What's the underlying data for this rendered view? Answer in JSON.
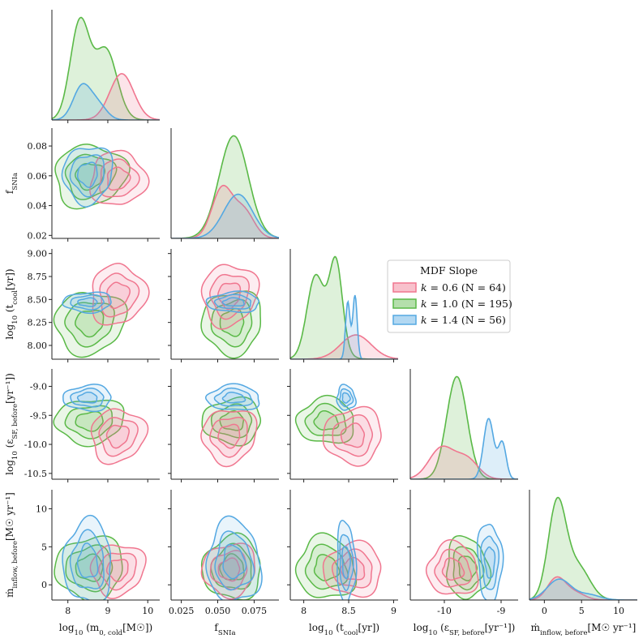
{
  "colors": {
    "k06": "#f0768f",
    "k10": "#5ab947",
    "k14": "#54a8e2"
  },
  "chart_data": {
    "type": "corner-kde",
    "variables": [
      {
        "label": "log10(m0,cold[M☉])",
        "ticks": [
          8,
          9,
          10
        ],
        "range": [
          7.6,
          10.3
        ]
      },
      {
        "label": "fSNIa",
        "ticks": [
          0.025,
          0.05,
          0.075
        ],
        "range": [
          0.018,
          0.092
        ]
      },
      {
        "label": "log10(tcool[yr])",
        "ticks": [
          8.0,
          8.5,
          9.0
        ],
        "range": [
          7.85,
          9.05
        ]
      },
      {
        "label": "log10(εSF,before[yr−1])",
        "ticks": [
          -10,
          -9
        ],
        "range": [
          -10.6,
          -8.7
        ]
      },
      {
        "label": "ṁinflow,before[M☉ yr−1]",
        "ticks": [
          0,
          5,
          10
        ],
        "range": [
          -2,
          12.5
        ]
      }
    ],
    "row_ticks": {
      "1": [
        0.02,
        0.04,
        0.06,
        0.08
      ],
      "2": [
        8.0,
        8.25,
        8.5,
        8.75,
        9.0
      ],
      "3": [
        -9.0,
        -9.5,
        -10.0,
        -10.5
      ],
      "4": [
        0,
        5,
        10
      ]
    },
    "axis_labels": {
      "x0": {
        "pre": "log",
        "sub": "10",
        "mid": " (m",
        "sub2": "0, cold",
        "post": "[M☉])"
      },
      "x1": {
        "pre": "f",
        "sub": "SNIa"
      },
      "x2": {
        "pre": "log",
        "sub": "10",
        "mid": " (t",
        "sub2": "cool",
        "post": "[yr])"
      },
      "x3": {
        "pre": "log",
        "sub": "10",
        "mid": " (ε",
        "sub2": "SF, before",
        "post": "[yr⁻¹])"
      },
      "x4": {
        "pre": "ṁ",
        "sub": "inflow, before",
        "post": "[M☉ yr⁻¹]"
      },
      "y1": {
        "pre": "f",
        "sub": "SNIa"
      },
      "y2": {
        "pre": "log",
        "sub": "10",
        "mid": " (t",
        "sub2": "cool",
        "post": "[yr])"
      },
      "y3": {
        "pre": "log",
        "sub": "10",
        "mid": " (ε",
        "sub2": "SF, before",
        "post": "[yr⁻¹])"
      },
      "y4": {
        "pre": "ṁ",
        "sub": "inflow, before",
        "post": "[M☉ yr⁻¹]"
      }
    },
    "legend": {
      "title": "MDF Slope",
      "location": "upper-right",
      "entries": [
        {
          "name": "k = 0.6 (N = 64)",
          "k": "k",
          "rest": " = 0.6 (N = 64)",
          "color": "k06"
        },
        {
          "name": "k = 1.0 (N = 195)",
          "k": "k",
          "rest": " = 1.0 (N = 195)",
          "color": "k10"
        },
        {
          "name": "k = 1.4 (N = 56)",
          "k": "k",
          "rest": " = 1.4 (N = 56)",
          "color": "k14"
        }
      ]
    },
    "series": [
      {
        "name": "k = 0.6",
        "color": "k06",
        "n": 64,
        "centers": [
          9.25,
          0.058,
          8.55,
          -9.85,
          2.0
        ],
        "sigmas": [
          0.32,
          0.009,
          0.16,
          0.22,
          1.6
        ],
        "marginals": [
          [
            [
              9.35,
              0.3,
              1.0
            ]
          ],
          [
            [
              0.053,
              0.007,
              0.55
            ],
            [
              0.068,
              0.007,
              0.3
            ]
          ],
          [
            [
              8.58,
              0.17,
              1.0
            ]
          ],
          [
            [
              -10.05,
              0.22,
              0.8
            ],
            [
              -9.6,
              0.2,
              0.5
            ]
          ],
          [
            [
              1.6,
              1.2,
              1.0
            ],
            [
              4.0,
              1.4,
              0.35
            ]
          ]
        ],
        "mheights": [
          0.42,
          0.48,
          0.22,
          0.3,
          0.21
        ]
      },
      {
        "name": "k = 1.0",
        "color": "k10",
        "n": 195,
        "centers": [
          8.55,
          0.06,
          8.25,
          -9.6,
          2.2
        ],
        "sigmas": [
          0.42,
          0.01,
          0.16,
          0.18,
          1.9
        ],
        "marginals": [
          [
            [
              8.3,
              0.24,
              1.0
            ],
            [
              8.95,
              0.28,
              0.72
            ]
          ],
          [
            [
              0.061,
              0.01,
              1.0
            ]
          ],
          [
            [
              8.12,
              0.09,
              0.78
            ],
            [
              8.36,
              0.07,
              0.95
            ],
            [
              8.25,
              0.14,
              0.35
            ]
          ],
          [
            [
              -9.78,
              0.18,
              1.0
            ]
          ],
          [
            [
              1.7,
              1.2,
              1.0
            ],
            [
              4.5,
              1.6,
              0.35
            ]
          ]
        ],
        "mheights": [
          0.93,
          0.93,
          0.93,
          0.93,
          0.93
        ]
      },
      {
        "name": "k = 1.4",
        "color": "k14",
        "n": 56,
        "centers": [
          8.5,
          0.061,
          8.47,
          -9.2,
          3.0
        ],
        "sigmas": [
          0.3,
          0.009,
          0.05,
          0.1,
          2.5
        ],
        "marginals": [
          [
            [
              8.35,
              0.22,
              1.0
            ],
            [
              8.75,
              0.22,
              0.45
            ]
          ],
          [
            [
              0.064,
              0.01,
              1.0
            ]
          ],
          [
            [
              8.49,
              0.025,
              0.9
            ],
            [
              8.57,
              0.025,
              1.0
            ]
          ],
          [
            [
              -9.22,
              0.09,
              1.0
            ],
            [
              -8.98,
              0.07,
              0.6
            ]
          ],
          [
            [
              2.0,
              1.6,
              1.0
            ],
            [
              6.0,
              1.5,
              0.25
            ]
          ]
        ],
        "mheights": [
          0.33,
          0.4,
          0.58,
          0.55,
          0.19
        ]
      }
    ]
  }
}
